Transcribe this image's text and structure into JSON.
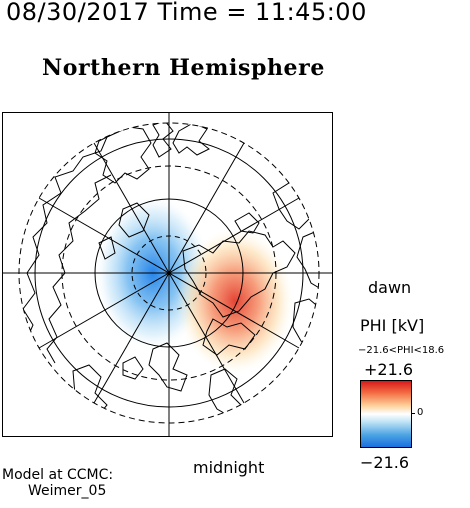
{
  "header": {
    "date_time": "08/30/2017 Time = 11:45:00",
    "title": "Northern Hemisphere"
  },
  "map": {
    "orientation_labels": {
      "right": "dawn",
      "bottom": "midnight"
    },
    "potential_pattern": {
      "negative_cell": {
        "phi_kv": -21.6,
        "color": "#1a6fdf"
      },
      "positive_cell": {
        "phi_kv": 18.6,
        "color": "#d7191c"
      }
    }
  },
  "legend": {
    "title": "PHI [kV]",
    "range_text": "−21.6<PHI<18.6",
    "max_label": "+21.6",
    "zero_label": "0",
    "min_label": "−21.6",
    "colors": {
      "high": "#d7191c",
      "mid": "#ffffff",
      "low": "#1a6fdf"
    }
  },
  "credits": {
    "line1": "Model at CCMC:",
    "line2": "Weimer_05"
  }
}
